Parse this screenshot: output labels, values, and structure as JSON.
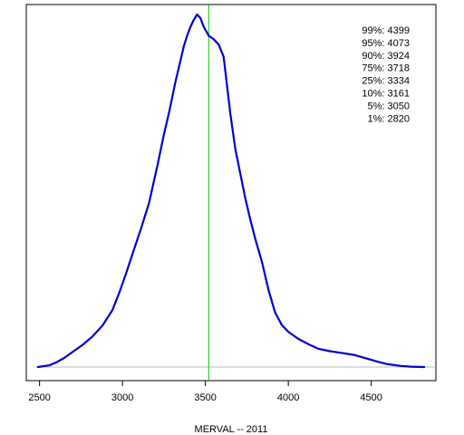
{
  "chart_data": {
    "type": "line",
    "xlabel": "MERVAL -- 2011",
    "ylabel": "",
    "xlim": [
      2420,
      4890
    ],
    "ylim": [
      0,
      1.0
    ],
    "xticks": [
      2500,
      3000,
      3500,
      4000,
      4500
    ],
    "xtick_labels": [
      "2500",
      "3000",
      "3500",
      "4000",
      "4500"
    ],
    "grid": false,
    "legend": "none",
    "colors": {
      "density": "#0000cc",
      "reference_line": "#00cc00",
      "baseline": "#bbbbbb"
    },
    "reference_line_x": 3520,
    "series": [
      {
        "x": [
          2490,
          2560,
          2600,
          2650,
          2700,
          2760,
          2820,
          2880,
          2940,
          2980,
          3020,
          3060,
          3110,
          3160,
          3210,
          3250,
          3280,
          3320,
          3350,
          3370,
          3390,
          3410,
          3430,
          3450,
          3470,
          3490,
          3520,
          3550,
          3580,
          3610,
          3630,
          3650,
          3680,
          3710,
          3740,
          3770,
          3800,
          3840,
          3880,
          3920,
          3960,
          4000,
          4060,
          4120,
          4180,
          4250,
          4320,
          4400,
          4460,
          4540,
          4600,
          4680,
          4740,
          4820
        ],
        "values": [
          0.0,
          0.005,
          0.013,
          0.026,
          0.043,
          0.063,
          0.087,
          0.118,
          0.162,
          0.21,
          0.263,
          0.32,
          0.39,
          0.465,
          0.57,
          0.66,
          0.72,
          0.81,
          0.87,
          0.91,
          0.94,
          0.965,
          0.985,
          1.0,
          0.99,
          0.965,
          0.94,
          0.93,
          0.915,
          0.88,
          0.8,
          0.72,
          0.62,
          0.55,
          0.48,
          0.42,
          0.365,
          0.3,
          0.22,
          0.155,
          0.12,
          0.1,
          0.08,
          0.065,
          0.052,
          0.045,
          0.04,
          0.034,
          0.026,
          0.015,
          0.008,
          0.003,
          0.001,
          0.0
        ]
      }
    ],
    "quantile_annotations": [
      {
        "label": "99%",
        "value": 4399,
        "text": "99%: 4399"
      },
      {
        "label": "95%",
        "value": 4073,
        "text": "95%: 4073"
      },
      {
        "label": "90%",
        "value": 3924,
        "text": "90%: 3924"
      },
      {
        "label": "75%",
        "value": 3718,
        "text": "75%: 3718"
      },
      {
        "label": "25%",
        "value": 3334,
        "text": "25%: 3334"
      },
      {
        "label": "10%",
        "value": 3161,
        "text": "10%: 3161"
      },
      {
        "label": "5%",
        "value": 3050,
        "text": "5%: 3050"
      },
      {
        "label": "1%",
        "value": 2820,
        "text": "1%: 2820"
      }
    ]
  }
}
